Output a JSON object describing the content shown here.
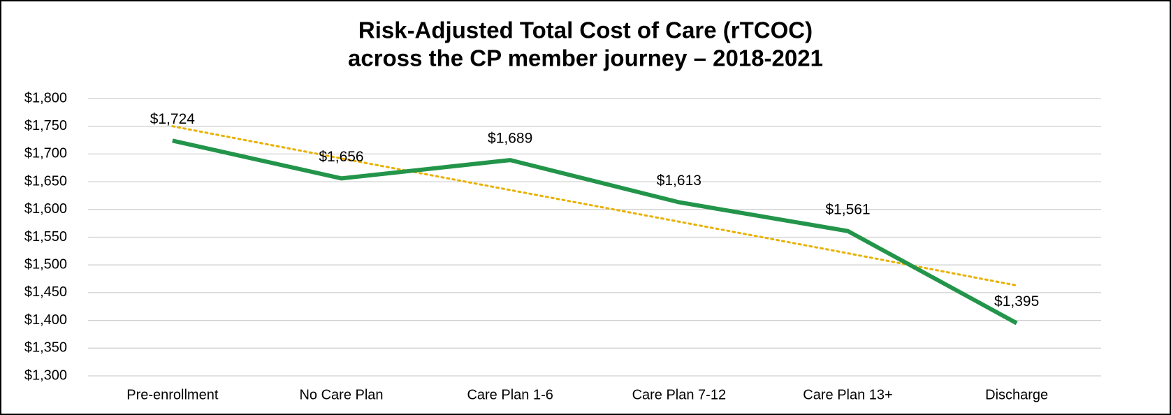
{
  "chart_data": {
    "type": "line",
    "title": [
      "Risk-Adjusted Total Cost of Care (rTCOC)",
      "across the CP member journey – 2018-2021"
    ],
    "categories": [
      "Pre-enrollment",
      "No Care Plan",
      "Care Plan 1-6",
      "Care Plan 7-12",
      "Care Plan 13+",
      "Discharge"
    ],
    "series": [
      {
        "color": "#23954a",
        "values": [
          1724,
          1656,
          1689,
          1613,
          1561,
          1395
        ],
        "value_labels": [
          "$1,724",
          "$1,656",
          "$1,689",
          "$1,613",
          "$1,561",
          "$1,395"
        ]
      },
      {
        "color": "#e8b100",
        "style": "dotted",
        "values": [
          1750,
          1692,
          1635,
          1578,
          1521,
          1463
        ]
      }
    ],
    "ylim": [
      1300,
      1800
    ],
    "yticks": [
      {
        "value": 1300,
        "label": "$1,300"
      },
      {
        "value": 1350,
        "label": "$1,350"
      },
      {
        "value": 1400,
        "label": "$1,400"
      },
      {
        "value": 1450,
        "label": "$1,450"
      },
      {
        "value": 1500,
        "label": "$1,500"
      },
      {
        "value": 1550,
        "label": "$1,550"
      },
      {
        "value": 1600,
        "label": "$1,600"
      },
      {
        "value": 1650,
        "label": "$1,650"
      },
      {
        "value": 1700,
        "label": "$1,700"
      },
      {
        "value": 1750,
        "label": "$1,750"
      },
      {
        "value": 1800,
        "label": "$1,800"
      }
    ],
    "grid": true
  }
}
